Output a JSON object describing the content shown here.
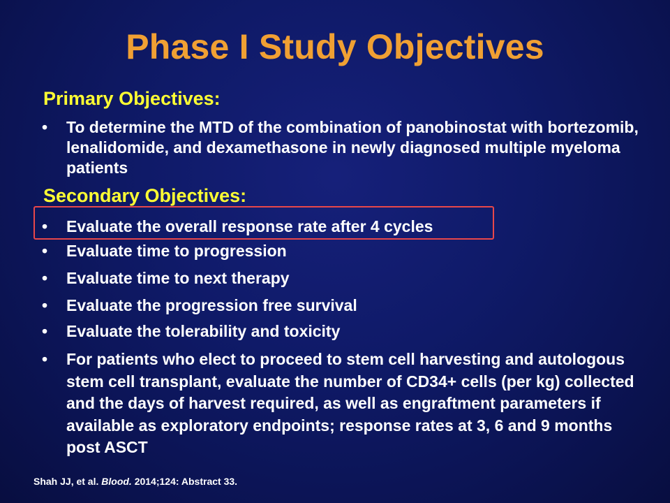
{
  "slide": {
    "title": "Phase I Study Objectives",
    "primary": {
      "heading": "Primary Objectives:",
      "bullets": [
        "To determine the MTD of the combination of panobinostat with bortezomib, lenalidomide, and dexamethasone in newly diagnosed multiple myeloma patients"
      ]
    },
    "secondary": {
      "heading": "Secondary Objectives:",
      "bullets": [
        "Evaluate the overall response rate after 4 cycles",
        "Evaluate time to progression",
        "Evaluate time to next therapy",
        "Evaluate the progression free survival",
        "Evaluate the tolerability and toxicity",
        "For patients who elect to proceed to stem cell harvesting and autologous stem cell transplant, evaluate the number of CD34+ cells (per kg) collected and the days of harvest required, as well as engraftment parameters if available as exploratory endpoints; response rates at 3, 6 and 9 months post ASCT"
      ],
      "highlighted_index": 0
    },
    "bullet_char": "•",
    "citation": {
      "authors": "Shah JJ, et al. ",
      "journal": "Blood.",
      "details": " 2014;124: Abstract 33."
    },
    "colors": {
      "title": "#f0a033",
      "heading": "#ffff33",
      "body_text": "#ffffff",
      "highlight_border": "#e8474a",
      "background": "#0f1a68"
    }
  }
}
